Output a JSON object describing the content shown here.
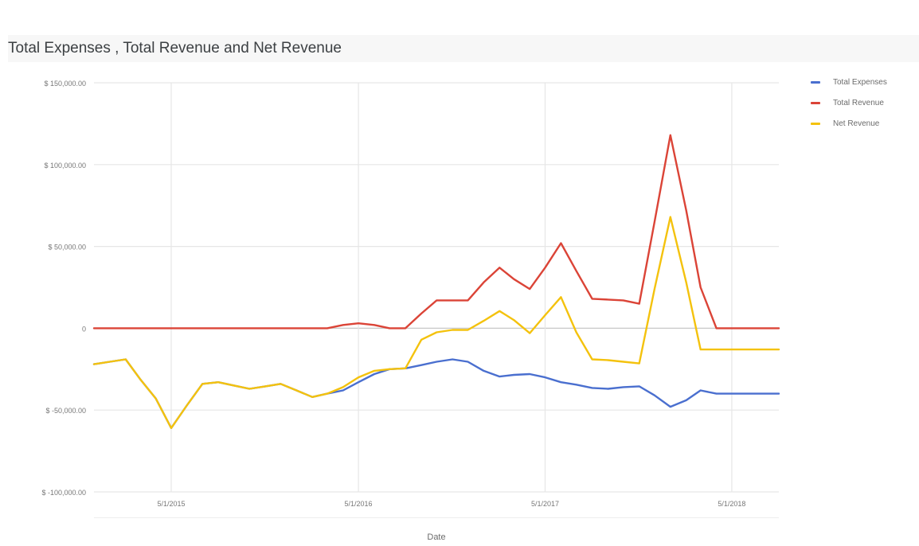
{
  "chart_data": {
    "type": "line",
    "title": "Total Expenses , Total Revenue and Net Revenue",
    "xlabel": "Date",
    "ylabel": "",
    "x_tick_labels": [
      "5/1/2015",
      "5/1/2016",
      "5/1/2017",
      "5/1/2018"
    ],
    "y_tick_labels": [
      "$ 150,000.00",
      "$ 100,000.00",
      "$ 50,000.00",
      "0",
      "$ -50,000.00",
      "$ -100,000.00"
    ],
    "ylim": [
      -100000,
      150000
    ],
    "grid": true,
    "legend_position": "top-right",
    "x": [
      "2014-12-01",
      "2015-01-01",
      "2015-02-01",
      "2015-03-01",
      "2015-04-01",
      "2015-05-01",
      "2015-06-01",
      "2015-07-01",
      "2015-08-01",
      "2015-09-01",
      "2015-10-01",
      "2015-11-01",
      "2015-12-01",
      "2016-01-01",
      "2016-02-01",
      "2016-03-01",
      "2016-04-01",
      "2016-05-01",
      "2016-06-01",
      "2016-07-01",
      "2016-08-01",
      "2016-09-01",
      "2016-10-01",
      "2016-11-01",
      "2016-12-01",
      "2017-01-01",
      "2017-02-01",
      "2017-03-01",
      "2017-04-01",
      "2017-05-01",
      "2017-06-01",
      "2017-07-01",
      "2017-08-01",
      "2017-09-01",
      "2017-10-01",
      "2017-11-01",
      "2017-12-01",
      "2018-01-01",
      "2018-02-01",
      "2018-03-01",
      "2018-04-01",
      "2018-05-01",
      "2018-06-01",
      "2018-07-01",
      "2018-08-01"
    ],
    "series": [
      {
        "name": "Total Expenses",
        "color": "#4a6fcf",
        "values": [
          -22000,
          -20500,
          -19000,
          -31000,
          -43000,
          -61000,
          -47000,
          -34000,
          -33000,
          -35000,
          -37000,
          -35500,
          -34000,
          -38000,
          -42000,
          -40000,
          -38000,
          -33000,
          -28000,
          -25000,
          -24500,
          -22500,
          -20500,
          -19000,
          -20500,
          -26000,
          -29500,
          -28500,
          -28000,
          -30000,
          -33000,
          -34500,
          -36500,
          -37000,
          -36000,
          -35500,
          -41000,
          -48000,
          -44000,
          -38000,
          -40000,
          -40000,
          -40000,
          -40000,
          -40000
        ]
      },
      {
        "name": "Total Revenue",
        "color": "#db4437",
        "values": [
          0,
          0,
          0,
          0,
          0,
          0,
          0,
          0,
          0,
          0,
          0,
          0,
          0,
          0,
          0,
          0,
          2000,
          3000,
          2000,
          0,
          0,
          9000,
          17000,
          17000,
          17000,
          28000,
          37000,
          30000,
          24000,
          37000,
          52000,
          35000,
          18000,
          17500,
          17000,
          15000,
          65000,
          118000,
          72000,
          25000,
          0,
          0,
          0,
          0,
          0
        ]
      },
      {
        "name": "Net Revenue",
        "color": "#f4c20d",
        "values": [
          -22000,
          -20500,
          -19000,
          -31000,
          -43000,
          -61000,
          -47000,
          -34000,
          -33000,
          -35000,
          -37000,
          -35500,
          -34000,
          -38000,
          -42000,
          -40000,
          -36000,
          -30000,
          -26000,
          -25000,
          -24500,
          -7000,
          -2500,
          -1000,
          -1000,
          4500,
          10500,
          5000,
          -3000,
          8000,
          19000,
          -2500,
          -19000,
          -19500,
          -20500,
          -21500,
          24000,
          68000,
          28000,
          -13000,
          -13000,
          -13000,
          -13000,
          -13000,
          -13000
        ]
      }
    ],
    "x_axis_end": "2018-08-01"
  }
}
